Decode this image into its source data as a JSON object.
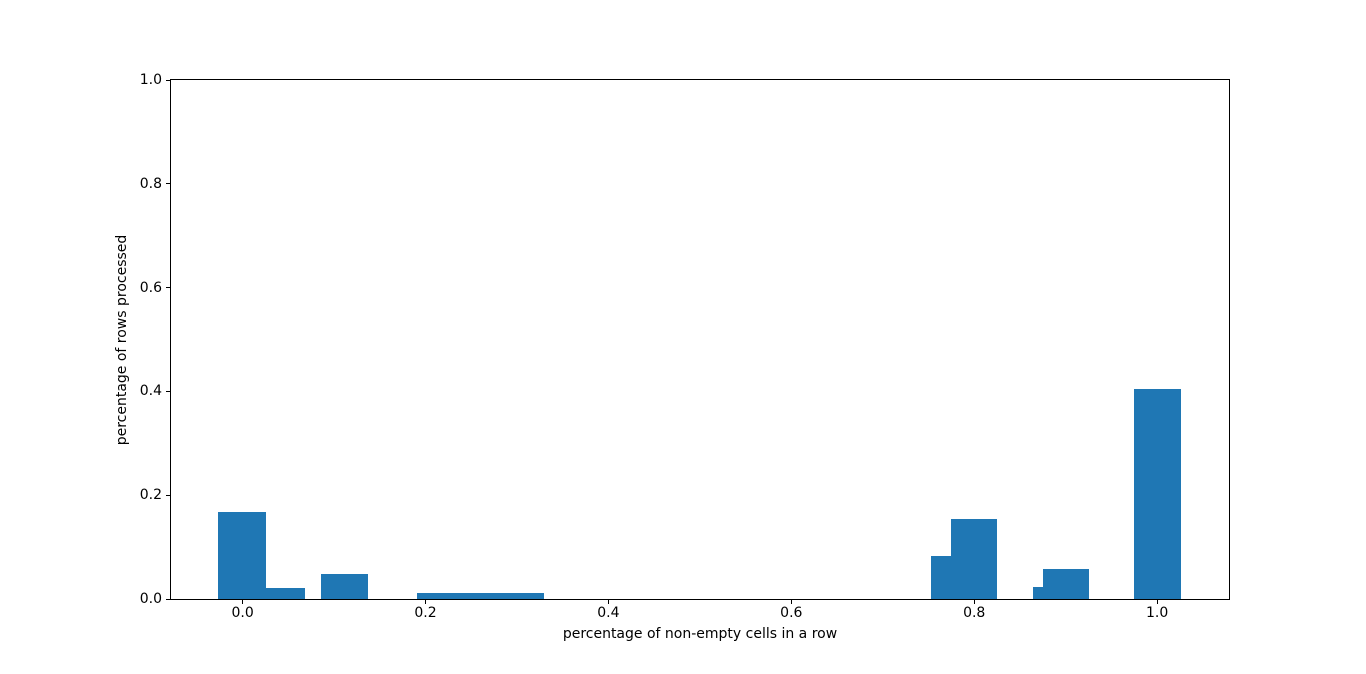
{
  "chart_data": {
    "type": "bar",
    "title": "",
    "xlabel": "percentage of non-empty cells in a row",
    "ylabel": "percentage of rows processed",
    "xlim": [
      -0.0783,
      1.0786
    ],
    "ylim": [
      0,
      1.0
    ],
    "grid": false,
    "legend_position": "none",
    "bar_color": "#1f77b4",
    "axis_color": "#000000",
    "background_color": "#ffffff",
    "x_ticks": [
      {
        "value": 0.0,
        "label": "0.0"
      },
      {
        "value": 0.2,
        "label": "0.2"
      },
      {
        "value": 0.4,
        "label": "0.4"
      },
      {
        "value": 0.6,
        "label": "0.6"
      },
      {
        "value": 0.8,
        "label": "0.8"
      },
      {
        "value": 1.0,
        "label": "1.0"
      }
    ],
    "y_ticks": [
      {
        "value": 0.0,
        "label": "0.0"
      },
      {
        "value": 0.2,
        "label": "0.2"
      },
      {
        "value": 0.4,
        "label": "0.4"
      },
      {
        "value": 0.6,
        "label": "0.6"
      },
      {
        "value": 0.8,
        "label": "0.8"
      },
      {
        "value": 1.0,
        "label": "1.0"
      }
    ],
    "bars": [
      {
        "x_left": -0.0267,
        "x_right": 0.0255,
        "height": 0.168
      },
      {
        "x_left": 0.0255,
        "x_right": 0.0681,
        "height": 0.022
      },
      {
        "x_left": 0.0855,
        "x_right": 0.1372,
        "height": 0.048
      },
      {
        "x_left": 0.1908,
        "x_right": 0.3295,
        "height": 0.011
      },
      {
        "x_left": 0.7528,
        "x_right": 0.7746,
        "height": 0.083
      },
      {
        "x_left": 0.7746,
        "x_right": 0.8252,
        "height": 0.154
      },
      {
        "x_left": 0.8645,
        "x_right": 0.8747,
        "height": 0.023
      },
      {
        "x_left": 0.8747,
        "x_right": 0.9257,
        "height": 0.058
      },
      {
        "x_left": 0.975,
        "x_right": 1.026,
        "height": 0.404
      }
    ]
  }
}
